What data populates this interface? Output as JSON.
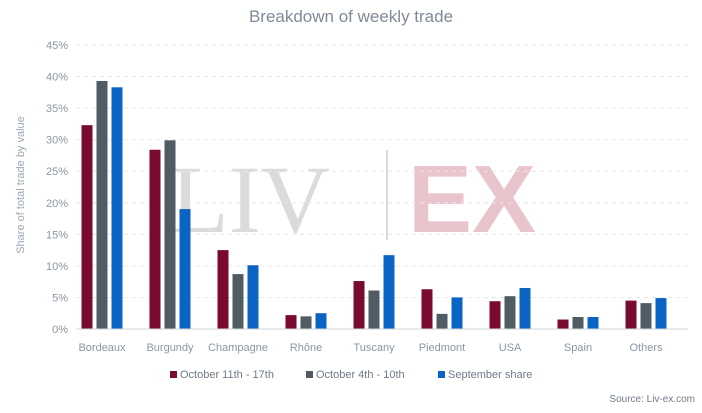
{
  "chart_data": {
    "type": "bar",
    "title": "Breakdown of weekly trade",
    "ylabel": "Share of total trade by value",
    "xlabel": "",
    "ylim": [
      0,
      45
    ],
    "yticks": [
      0,
      5,
      10,
      15,
      20,
      25,
      30,
      35,
      40,
      45
    ],
    "ytick_labels": [
      "0%",
      "5%",
      "10%",
      "15%",
      "20%",
      "25%",
      "30%",
      "35%",
      "40%",
      "45%"
    ],
    "grid": true,
    "legend_position": "bottom",
    "categories": [
      "Bordeaux",
      "Burgundy",
      "Champagne",
      "Rhône",
      "Tuscany",
      "Piedmont",
      "USA",
      "Spain",
      "Others"
    ],
    "series": [
      {
        "name": "October 11th - 17th",
        "color": "#7a0a30",
        "values": [
          32.3,
          28.4,
          12.5,
          2.2,
          7.6,
          6.3,
          4.4,
          1.5,
          4.5
        ]
      },
      {
        "name": "October 4th - 10th",
        "color": "#505b64",
        "values": [
          39.3,
          29.9,
          8.7,
          2.0,
          6.1,
          2.4,
          5.2,
          1.9,
          4.1
        ]
      },
      {
        "name": "September share",
        "color": "#0b64c4",
        "values": [
          38.3,
          19.0,
          10.1,
          2.5,
          11.7,
          5.0,
          6.5,
          1.9,
          4.9
        ]
      }
    ],
    "source": "Source: Liv-ex.com",
    "watermark": {
      "left": "LIV",
      "right": "EX"
    }
  }
}
